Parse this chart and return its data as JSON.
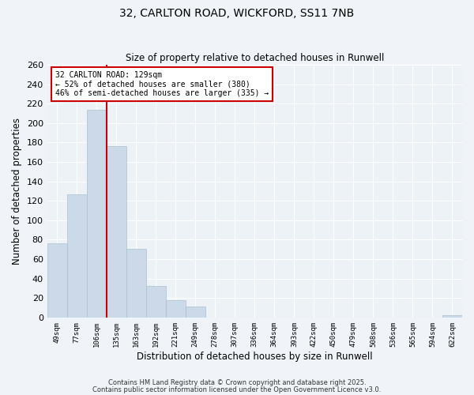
{
  "title": "32, CARLTON ROAD, WICKFORD, SS11 7NB",
  "subtitle": "Size of property relative to detached houses in Runwell",
  "xlabel": "Distribution of detached houses by size in Runwell",
  "ylabel": "Number of detached properties",
  "bin_labels": [
    "49sqm",
    "77sqm",
    "106sqm",
    "135sqm",
    "163sqm",
    "192sqm",
    "221sqm",
    "249sqm",
    "278sqm",
    "307sqm",
    "336sqm",
    "364sqm",
    "393sqm",
    "422sqm",
    "450sqm",
    "479sqm",
    "508sqm",
    "536sqm",
    "565sqm",
    "594sqm",
    "622sqm"
  ],
  "bar_values": [
    76,
    127,
    214,
    176,
    71,
    32,
    18,
    11,
    0,
    0,
    0,
    0,
    0,
    0,
    0,
    0,
    0,
    0,
    0,
    0,
    2
  ],
  "bar_color": "#ccd9e8",
  "bar_edge_color": "#aabfcf",
  "background_color": "#edf2f7",
  "grid_color": "#ffffff",
  "vline_color": "#cc0000",
  "annotation_text_line1": "32 CARLTON ROAD: 129sqm",
  "annotation_text_line2": "← 52% of detached houses are smaller (380)",
  "annotation_text_line3": "46% of semi-detached houses are larger (335) →",
  "annotation_box_color": "#cc0000",
  "ylim": [
    0,
    260
  ],
  "yticks": [
    0,
    20,
    40,
    60,
    80,
    100,
    120,
    140,
    160,
    180,
    200,
    220,
    240,
    260
  ],
  "footnote1": "Contains HM Land Registry data © Crown copyright and database right 2025.",
  "footnote2": "Contains public sector information licensed under the Open Government Licence v3.0."
}
